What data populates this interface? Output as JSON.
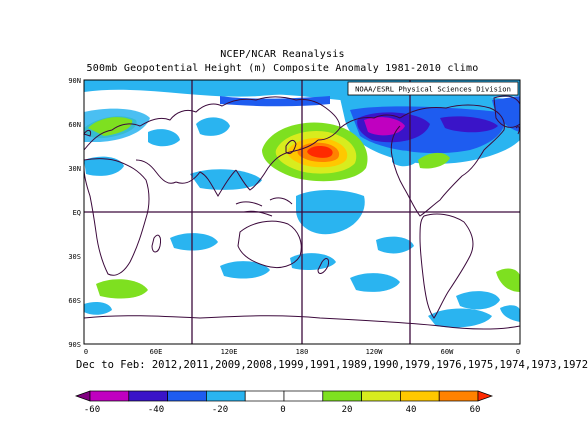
{
  "title": "NCEP/NCAR Reanalysis",
  "subtitle": "500mb Geopotential Height (m) Composite Anomaly 1981-2010 climo",
  "credit": "NOAA/ESRL Physical Sciences Division",
  "lat_labels": [
    "90N",
    "60N",
    "30N",
    "EQ",
    "30S",
    "60S",
    "90S"
  ],
  "lon_labels": [
    "0",
    "60E",
    "120E",
    "180",
    "120W",
    "60W",
    "0"
  ],
  "caption": "Dec to Feb: 2012,2011,2009,2008,1999,1991,1989,1990,1979,1976,1975,1974,1973,1972",
  "colorbar": {
    "ticks": [
      "-60",
      "-40",
      "-20",
      "0",
      "20",
      "40",
      "60"
    ],
    "colors": [
      "#800080",
      "#c000c0",
      "#3a14c8",
      "#1e5cf0",
      "#2ab4f0",
      "#ffffff",
      "#ffffff",
      "#7ee020",
      "#d8ec1e",
      "#ffc800",
      "#ff8200",
      "#ff2a00"
    ]
  },
  "anomaly_colors": {
    "neg60": "#800080",
    "neg50": "#c000c0",
    "neg40": "#3a14c8",
    "neg30": "#1e5cf0",
    "neg20": "#2ab4f0",
    "pos20": "#7ee020",
    "pos30": "#d8ec1e",
    "pos40": "#ffc800",
    "pos50": "#ff8200",
    "pos60": "#ff2a00"
  }
}
